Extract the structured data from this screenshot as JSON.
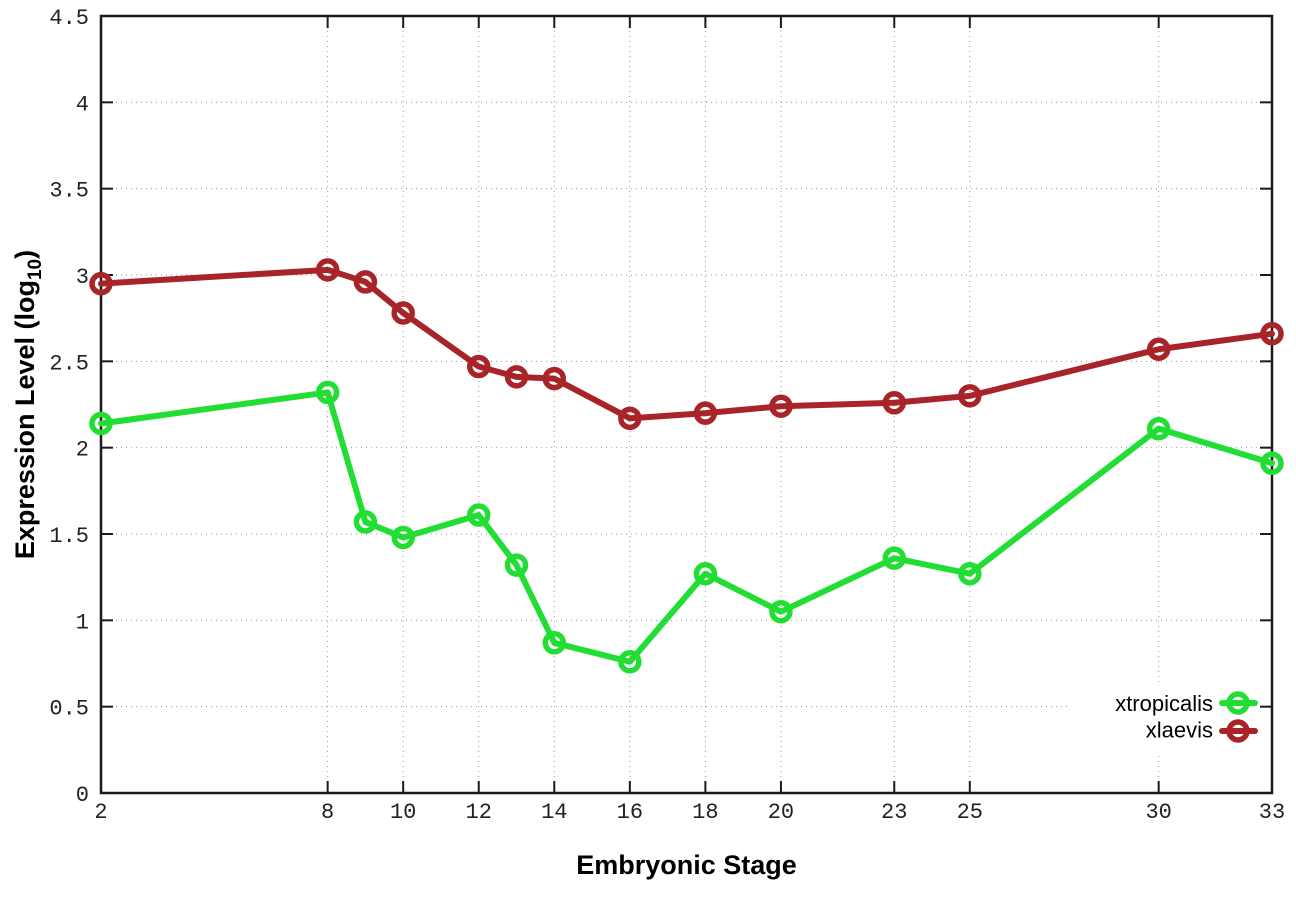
{
  "figure": {
    "background": "#ffffff",
    "ylabel_main": "Expression Level (log",
    "ylabel_sub": "10",
    "ylabel_close": ")"
  },
  "chart_data": {
    "type": "line",
    "title": "",
    "xlabel": "Embryonic Stage",
    "ylabel": "Expression Level (log10)",
    "x": [
      2,
      8,
      9,
      10,
      12,
      13,
      14,
      16,
      18,
      20,
      23,
      25,
      30,
      33
    ],
    "x_tick_labels": [
      2,
      8,
      10,
      12,
      14,
      16,
      18,
      20,
      23,
      25,
      30,
      33
    ],
    "xlim": [
      2,
      33
    ],
    "y_ticks": [
      0,
      0.5,
      1,
      1.5,
      2,
      2.5,
      3,
      3.5,
      4,
      4.5
    ],
    "ylim": [
      0,
      4.5
    ],
    "grid": true,
    "grid_style": "dotted",
    "grid_color": "#9a9a9a",
    "axis_color": "#1a1a1a",
    "legend_position": "bottom-right",
    "marker": "open-circle",
    "series": [
      {
        "name": "xtropicalis",
        "color": "#22dd33",
        "values": [
          2.14,
          2.32,
          1.57,
          1.48,
          1.61,
          1.32,
          0.87,
          0.76,
          1.27,
          1.05,
          1.36,
          1.27,
          2.11,
          1.91
        ]
      },
      {
        "name": "xlaevis",
        "color": "#a82428",
        "values": [
          2.95,
          3.03,
          2.96,
          2.78,
          2.47,
          2.41,
          2.4,
          2.17,
          2.2,
          2.24,
          2.26,
          2.3,
          2.57,
          2.66
        ]
      }
    ]
  }
}
